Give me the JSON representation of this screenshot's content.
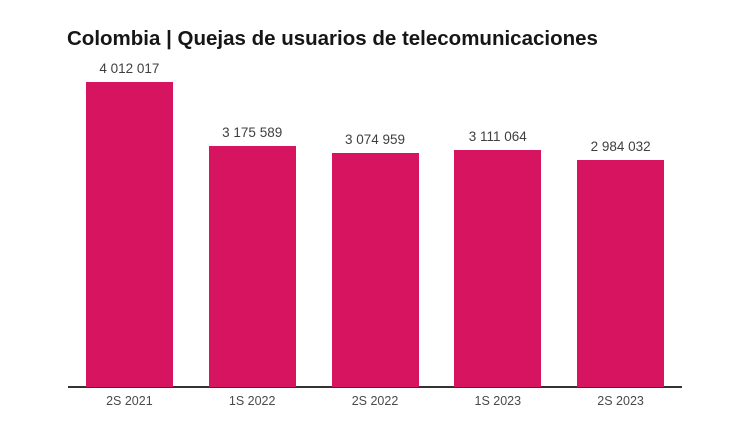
{
  "page": {
    "background_color": "#ffffff"
  },
  "chart_data": {
    "type": "bar",
    "title": "Colombia | Quejas de usuarios de telecomunicaciones",
    "categories": [
      "2S 2021",
      "1S 2022",
      "2S 2022",
      "1S 2023",
      "2S 2023"
    ],
    "values": [
      4012017,
      3175589,
      3074959,
      3111064,
      2984032
    ],
    "value_labels": [
      "4 012 017",
      "3 175 589",
      "3 074 959",
      "3 111 064",
      "2 984 032"
    ],
    "xlabel": "",
    "ylabel": "",
    "ylim": [
      0,
      4012017
    ],
    "grid": false,
    "legend": false,
    "y_axis_visible": false,
    "x_axis_visible": true,
    "colors": {
      "bar": "#d6145f",
      "axis_line": "#333333",
      "value_label": "#3f3f3f",
      "category_label": "#4a4a4a",
      "title": "#161616"
    }
  }
}
